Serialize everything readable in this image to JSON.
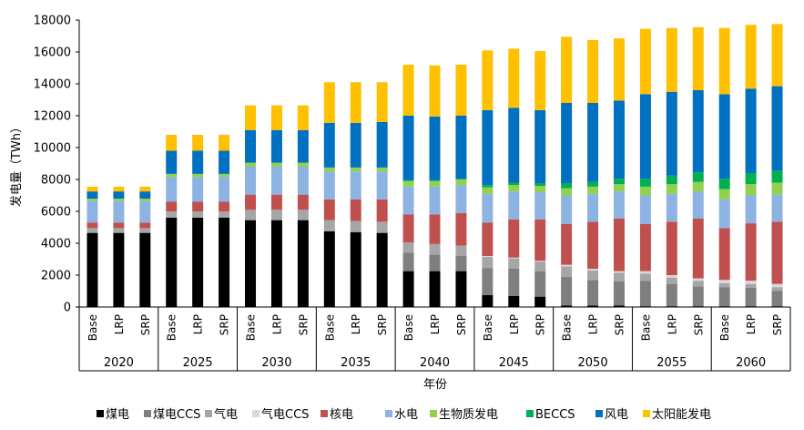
{
  "chart_data": {
    "type": "bar",
    "stacked": true,
    "title": "",
    "xlabel": "年份",
    "ylabel": "发电量（TWh）",
    "ylim": [
      0,
      18000
    ],
    "yticks": [
      0,
      2000,
      4000,
      6000,
      8000,
      10000,
      12000,
      14000,
      16000,
      18000
    ],
    "years": [
      "2020",
      "2025",
      "2030",
      "2035",
      "2040",
      "2045",
      "2050",
      "2055",
      "2060"
    ],
    "scenarios": [
      "Base",
      "LRP",
      "SRP"
    ],
    "legend_position": "bottom",
    "series": [
      {
        "name": "煤电",
        "color": "#000000",
        "values": [
          [
            4650,
            4650,
            4650
          ],
          [
            5600,
            5600,
            5600
          ],
          [
            5450,
            5450,
            5450
          ],
          [
            4750,
            4700,
            4650
          ],
          [
            2250,
            2250,
            2250
          ],
          [
            750,
            700,
            650
          ],
          [
            100,
            100,
            100
          ],
          [
            50,
            50,
            50
          ],
          [
            50,
            50,
            50
          ]
        ]
      },
      {
        "name": "煤电CCS",
        "color": "#7f7f7f",
        "values": [
          [
            0,
            0,
            0
          ],
          [
            0,
            0,
            0
          ],
          [
            0,
            0,
            0
          ],
          [
            0,
            0,
            0
          ],
          [
            1150,
            1050,
            950
          ],
          [
            1700,
            1700,
            1600
          ],
          [
            1800,
            1600,
            1500
          ],
          [
            1600,
            1400,
            1250
          ],
          [
            1200,
            1150,
            950
          ]
        ]
      },
      {
        "name": "气电",
        "color": "#a6a6a6",
        "values": [
          [
            300,
            300,
            300
          ],
          [
            400,
            400,
            400
          ],
          [
            650,
            650,
            650
          ],
          [
            700,
            700,
            700
          ],
          [
            650,
            650,
            650
          ],
          [
            700,
            650,
            600
          ],
          [
            650,
            600,
            550
          ],
          [
            450,
            400,
            350
          ],
          [
            250,
            250,
            250
          ]
        ]
      },
      {
        "name": "气电CCS",
        "color": "#d9d9d9",
        "values": [
          [
            0,
            0,
            0
          ],
          [
            0,
            0,
            0
          ],
          [
            0,
            0,
            0
          ],
          [
            0,
            0,
            0
          ],
          [
            0,
            0,
            0
          ],
          [
            50,
            50,
            50
          ],
          [
            100,
            100,
            100
          ],
          [
            150,
            150,
            150
          ],
          [
            200,
            200,
            200
          ]
        ]
      },
      {
        "name": "核电",
        "color": "#c0504d",
        "values": [
          [
            350,
            350,
            350
          ],
          [
            600,
            600,
            600
          ],
          [
            950,
            950,
            950
          ],
          [
            1300,
            1350,
            1400
          ],
          [
            1750,
            1850,
            2050
          ],
          [
            2100,
            2400,
            2600
          ],
          [
            2550,
            2950,
            3300
          ],
          [
            2950,
            3350,
            3750
          ],
          [
            3250,
            3600,
            3900
          ]
        ]
      },
      {
        "name": "水电",
        "color": "#8db3e2",
        "values": [
          [
            1350,
            1350,
            1350
          ],
          [
            1550,
            1550,
            1550
          ],
          [
            1750,
            1750,
            1750
          ],
          [
            1750,
            1750,
            1750
          ],
          [
            1750,
            1750,
            1750
          ],
          [
            1800,
            1750,
            1700
          ],
          [
            1800,
            1750,
            1700
          ],
          [
            1800,
            1750,
            1700
          ],
          [
            1800,
            1750,
            1700
          ]
        ]
      },
      {
        "name": "生物质发电",
        "color": "#92d050",
        "values": [
          [
            150,
            150,
            150
          ],
          [
            200,
            200,
            200
          ],
          [
            250,
            250,
            250
          ],
          [
            250,
            250,
            250
          ],
          [
            350,
            350,
            350
          ],
          [
            400,
            400,
            400
          ],
          [
            450,
            450,
            450
          ],
          [
            550,
            600,
            600
          ],
          [
            650,
            700,
            750
          ]
        ]
      },
      {
        "name": "BECCS",
        "color": "#00b050",
        "values": [
          [
            0,
            0,
            0
          ],
          [
            0,
            0,
            0
          ],
          [
            0,
            0,
            0
          ],
          [
            0,
            0,
            0
          ],
          [
            50,
            50,
            50
          ],
          [
            150,
            150,
            150
          ],
          [
            300,
            300,
            350
          ],
          [
            500,
            550,
            600
          ],
          [
            650,
            700,
            750
          ]
        ]
      },
      {
        "name": "风电",
        "color": "#0070c0",
        "values": [
          [
            450,
            450,
            450
          ],
          [
            1450,
            1450,
            1450
          ],
          [
            2050,
            2050,
            2050
          ],
          [
            2800,
            2800,
            2850
          ],
          [
            4050,
            4000,
            3950
          ],
          [
            4700,
            4700,
            4600
          ],
          [
            5050,
            4950,
            4900
          ],
          [
            5300,
            5250,
            5150
          ],
          [
            5300,
            5300,
            5300
          ]
        ]
      },
      {
        "name": "太阳能发电",
        "color": "#ffc000",
        "values": [
          [
            300,
            300,
            300
          ],
          [
            1000,
            1000,
            1000
          ],
          [
            1550,
            1550,
            1550
          ],
          [
            2550,
            2550,
            2500
          ],
          [
            3200,
            3200,
            3200
          ],
          [
            3750,
            3700,
            3700
          ],
          [
            4150,
            3950,
            3900
          ],
          [
            4100,
            4000,
            3950
          ],
          [
            4150,
            4000,
            3900
          ]
        ]
      }
    ]
  }
}
